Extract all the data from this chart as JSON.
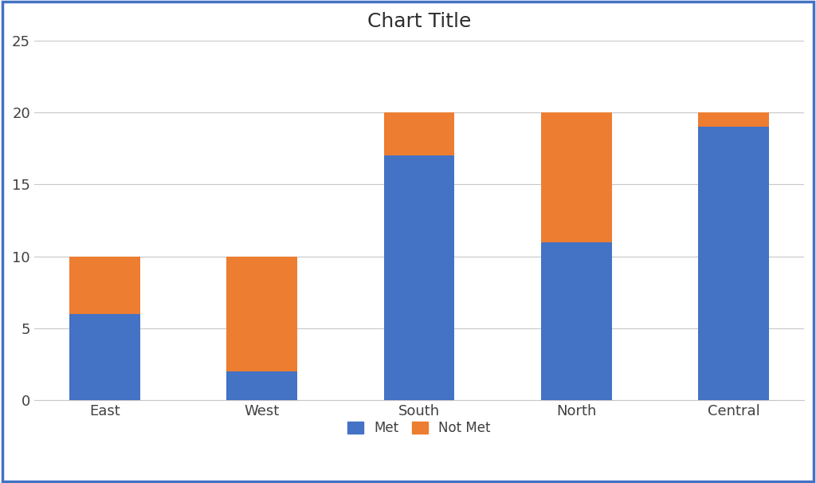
{
  "categories": [
    "East",
    "West",
    "South",
    "North",
    "Central"
  ],
  "met_values": [
    6,
    2,
    17,
    11,
    19
  ],
  "not_met_values": [
    4,
    8,
    3,
    9,
    1
  ],
  "met_color": "#4472C4",
  "not_met_color": "#ED7D31",
  "title": "Chart Title",
  "title_fontsize": 18,
  "ylim": [
    0,
    25
  ],
  "yticks": [
    0,
    5,
    10,
    15,
    20,
    25
  ],
  "legend_labels": [
    "Met",
    "Not Met"
  ],
  "background_color": "#FFFFFF",
  "border_color": "#4472C4",
  "grid_color": "#C8C8C8",
  "tick_label_fontsize": 13,
  "axis_label_color": "#404040",
  "bar_width": 0.45
}
